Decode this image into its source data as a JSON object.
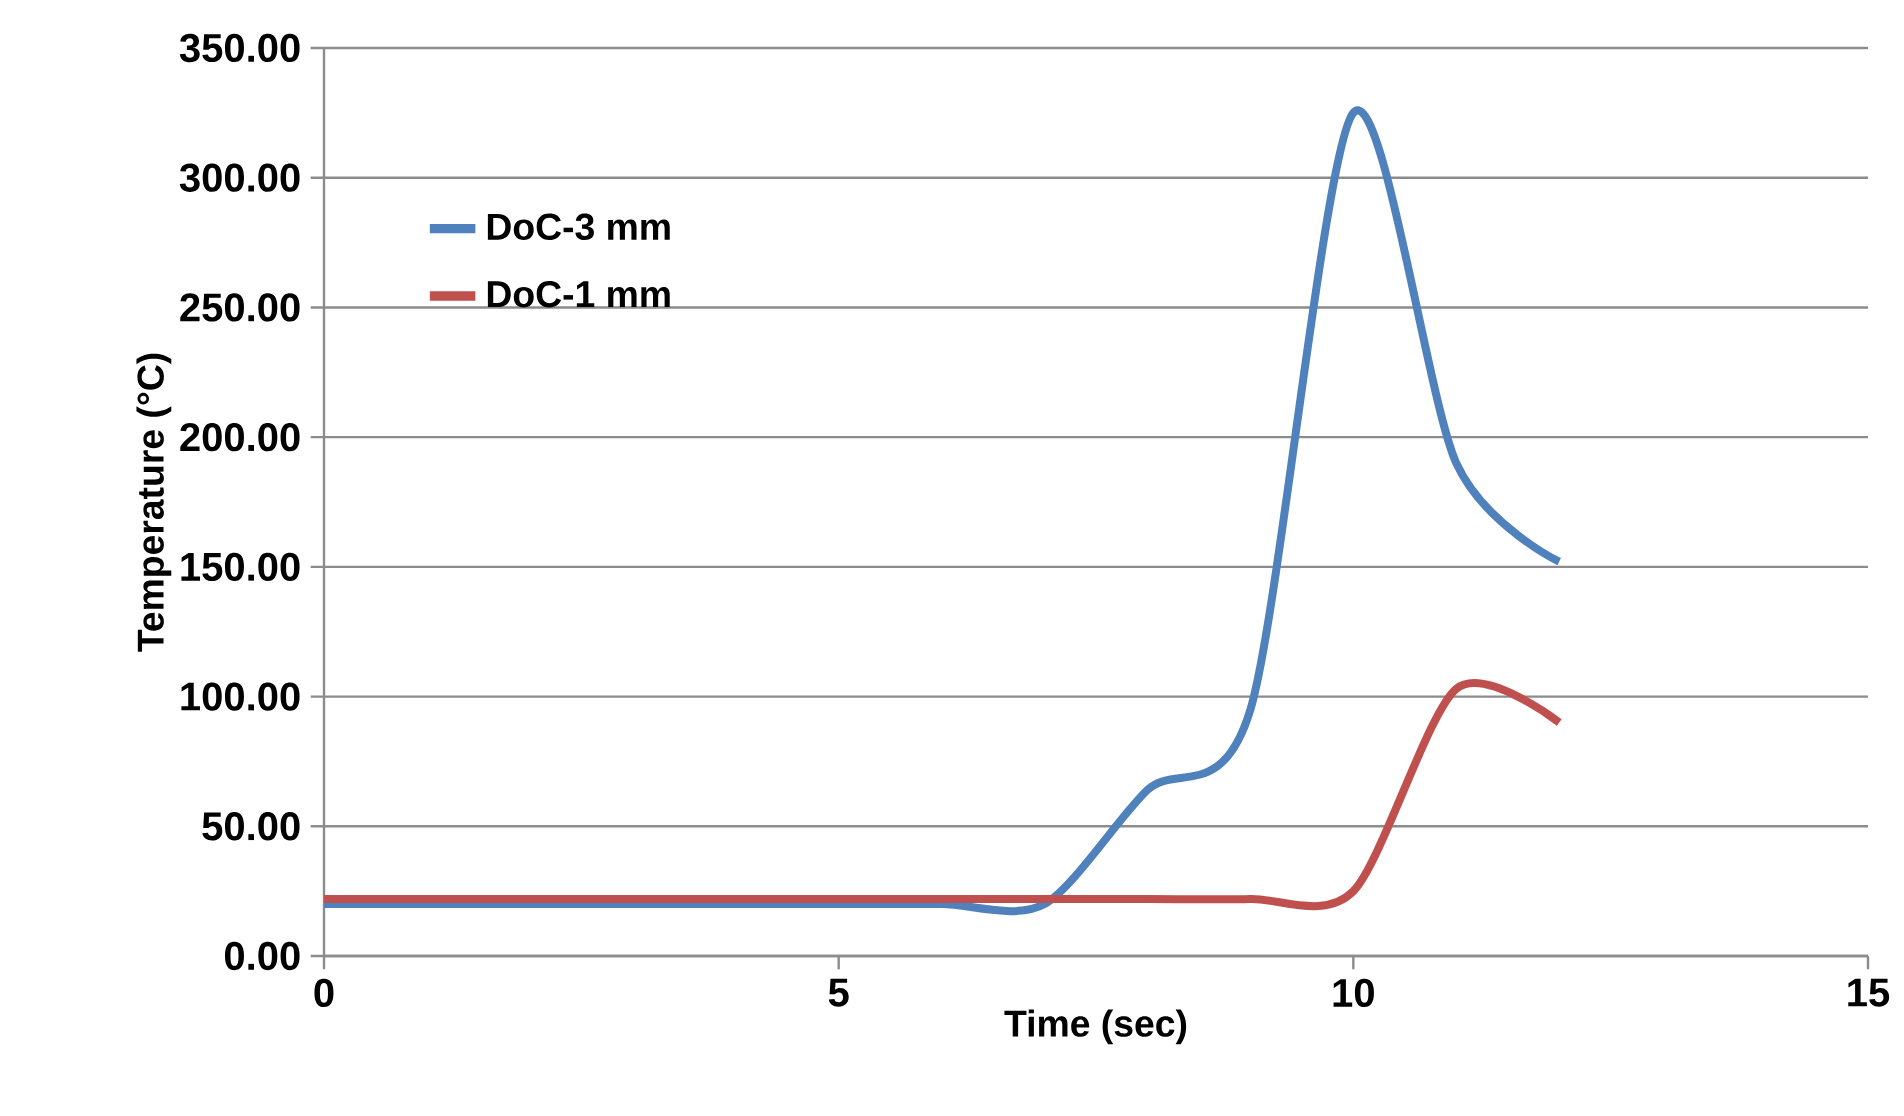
{
  "chart_data": {
    "type": "line",
    "xlabel": "Time (sec)",
    "ylabel": "Temperature (°C)",
    "xlim": [
      0,
      15
    ],
    "xticks": [
      0,
      5,
      10,
      15
    ],
    "ylim": [
      0,
      350
    ],
    "yticks": [
      {
        "value": 0,
        "label": "0.00"
      },
      {
        "value": 50,
        "label": "50.00"
      },
      {
        "value": 100,
        "label": "100.00"
      },
      {
        "value": 150,
        "label": "150.00"
      },
      {
        "value": 200,
        "label": "200.00"
      },
      {
        "value": 250,
        "label": "250.00"
      },
      {
        "value": 300,
        "label": "300.00"
      },
      {
        "value": 350,
        "label": "350.00"
      }
    ],
    "grid": "y",
    "legend": "top left",
    "marker": "none",
    "line_style": "solid",
    "x": [
      0,
      1,
      2,
      3,
      4,
      5,
      6,
      7,
      8,
      9,
      10,
      11,
      12
    ],
    "series": [
      {
        "name": "DoC-3 mm",
        "color": "#4f81bd",
        "values": [
          20,
          20,
          20,
          20,
          20,
          20,
          20,
          20,
          64,
          95,
          325,
          190,
          152
        ]
      },
      {
        "name": "DoC-1 mm",
        "color": "#c0504d",
        "values": [
          22,
          22,
          22,
          22,
          22,
          22,
          22,
          22,
          22,
          22,
          25,
          103,
          90
        ]
      }
    ]
  }
}
